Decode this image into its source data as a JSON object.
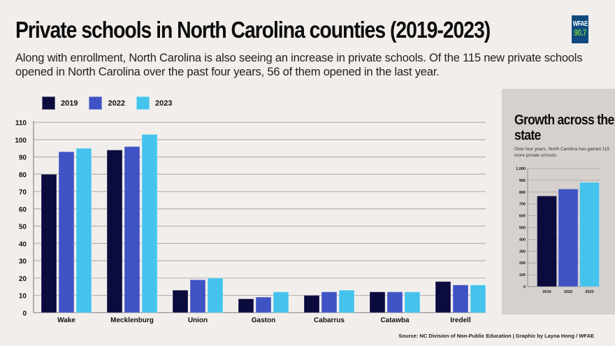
{
  "header": {
    "title": "Private schools in North Carolina counties (2019-2023)",
    "subtitle": "Along with enrollment, North Carolina is also seeing an increase in private schools. Of the 115 new private schools opened in North Carolina over the past four years, 56 of them opened in the last year.",
    "logo_line1": "WFAE",
    "logo_line2": "90.7"
  },
  "colors": {
    "2019": "#0c0b3e",
    "2022": "#3f53c4",
    "2023": "#45c3ed",
    "background": "#f2eeeb",
    "panel": "#d6d1cd",
    "grid": "#b8b3ae",
    "logo_bg": "#0f4b7e",
    "logo_accent": "#6cc04a"
  },
  "legend": [
    {
      "label": "2019",
      "color": "#0c0b3e"
    },
    {
      "label": "2022",
      "color": "#3f53c4"
    },
    {
      "label": "2023",
      "color": "#45c3ed"
    }
  ],
  "panel": {
    "title": "Growth across the state",
    "subtitle": "Over four years, North Carolina has gained 115 more private schools."
  },
  "source": "Source: NC Division of Non-Public Education | Graphic by Layna Hong / WFAE",
  "chart_data": [
    {
      "type": "bar",
      "title": "Private schools in North Carolina counties (2019-2023)",
      "xlabel": "",
      "ylabel": "",
      "categories": [
        "Wake",
        "Mecklenburg",
        "Union",
        "Gaston",
        "Cabarrus",
        "Catawba",
        "Iredell"
      ],
      "series": [
        {
          "name": "2019",
          "values": [
            80,
            94,
            13,
            8,
            10,
            12,
            18
          ]
        },
        {
          "name": "2022",
          "values": [
            93,
            96,
            19,
            9,
            12,
            12,
            16
          ]
        },
        {
          "name": "2023",
          "values": [
            95,
            103,
            20,
            12,
            13,
            12,
            16
          ]
        }
      ],
      "ylim": [
        0,
        110
      ],
      "yticks": [
        0,
        10,
        20,
        30,
        40,
        50,
        60,
        70,
        80,
        90,
        100,
        110
      ],
      "ytick_labels": [
        "0",
        "10",
        "20",
        "30",
        "40",
        "50",
        "60",
        "70",
        "80",
        "90",
        "100",
        "110"
      ],
      "grid": true,
      "legend": "top-left"
    },
    {
      "type": "bar",
      "title": "Growth across the state",
      "categories": [
        "2019",
        "2022",
        "2023"
      ],
      "values": [
        767,
        826,
        882
      ],
      "ylim": [
        0,
        1000
      ],
      "yticks": [
        0,
        100,
        200,
        300,
        400,
        500,
        600,
        700,
        800,
        900,
        1000
      ],
      "ytick_labels": [
        "0",
        "100",
        "200",
        "300",
        "400",
        "500",
        "600",
        "700",
        "800",
        "900",
        "1,000"
      ],
      "grid": true
    }
  ]
}
